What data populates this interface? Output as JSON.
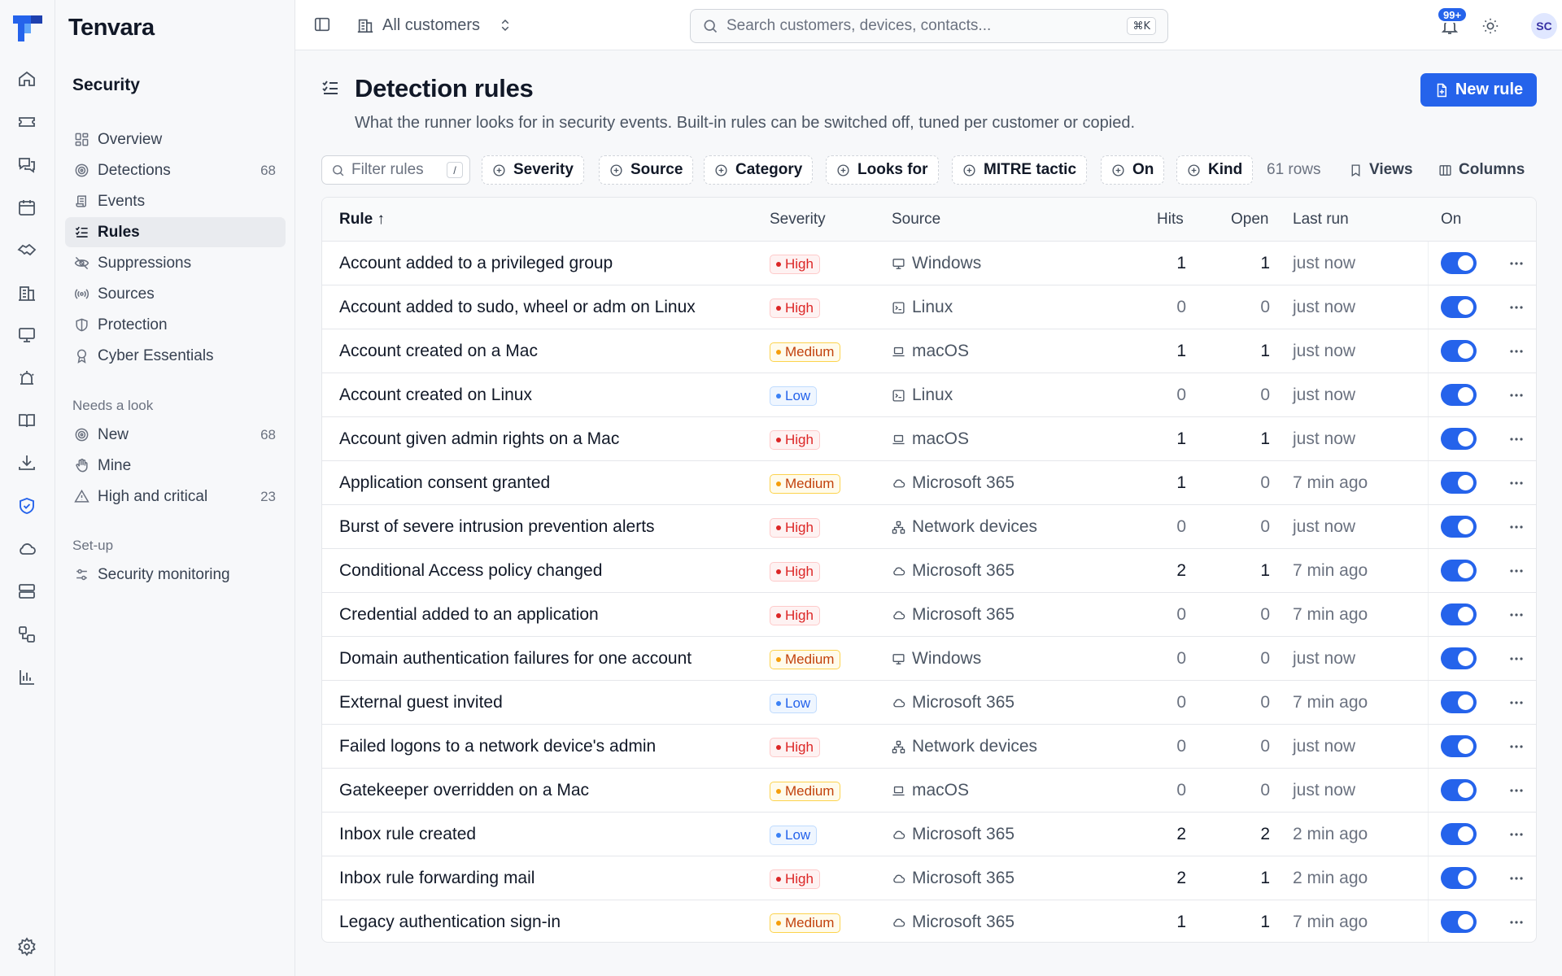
{
  "app": {
    "name": "Tenvara"
  },
  "rail": {
    "icons": [
      "home-icon",
      "ticket-icon",
      "chat-icon",
      "calendar-icon",
      "handshake-icon",
      "building-icon",
      "monitor-icon",
      "alarm-icon",
      "book-icon",
      "download-icon",
      "shield-icon",
      "cloud-icon",
      "server-icon",
      "workflow-icon",
      "bar-chart-icon",
      "settings-icon"
    ],
    "active": "shield-icon"
  },
  "sidebar": {
    "title": "Security",
    "items": [
      {
        "label": "Overview",
        "icon": "dashboard-icon",
        "count": ""
      },
      {
        "label": "Detections",
        "icon": "target-icon",
        "count": "68"
      },
      {
        "label": "Events",
        "icon": "scroll-icon",
        "count": ""
      },
      {
        "label": "Rules",
        "icon": "list-check-icon",
        "count": "",
        "active": true
      },
      {
        "label": "Suppressions",
        "icon": "eye-off-icon",
        "count": ""
      },
      {
        "label": "Sources",
        "icon": "radio-icon",
        "count": ""
      },
      {
        "label": "Protection",
        "icon": "shield-half-icon",
        "count": ""
      },
      {
        "label": "Cyber Essentials",
        "icon": "award-icon",
        "count": ""
      }
    ],
    "group_needs_look": "Needs a look",
    "needs_look_items": [
      {
        "label": "New",
        "icon": "target-icon",
        "count": "68"
      },
      {
        "label": "Mine",
        "icon": "hand-icon",
        "count": ""
      },
      {
        "label": "High and critical",
        "icon": "warning-icon",
        "count": "23"
      }
    ],
    "group_setup": "Set-up",
    "setup_items": [
      {
        "label": "Security monitoring",
        "icon": "sliders-icon",
        "count": ""
      }
    ]
  },
  "topbar": {
    "customer_selector": "All customers",
    "search_placeholder": "Search customers, devices, contacts...",
    "search_shortcut": "⌘K",
    "notifications_badge": "99+",
    "avatar_initials": "SC"
  },
  "page": {
    "title": "Detection rules",
    "description": "What the runner looks for in security events. Built-in rules can be switched off, tuned per customer or copied.",
    "new_button": "New rule"
  },
  "filters": {
    "filter_placeholder": "Filter rules",
    "filter_shortcut": "/",
    "chips": [
      "Severity",
      "Source",
      "Category",
      "Looks for",
      "MITRE tactic",
      "On",
      "Kind"
    ],
    "rows_count": "61 rows",
    "views_label": "Views",
    "columns_label": "Columns"
  },
  "table": {
    "columns": {
      "rule": "Rule ↑",
      "severity": "Severity",
      "source": "Source",
      "hits": "Hits",
      "open": "Open",
      "last_run": "Last run",
      "on": "On"
    },
    "rows": [
      {
        "rule": "Account added to a privileged group",
        "severity": "High",
        "source": "Windows",
        "source_icon": "monitor-icon",
        "hits": "1",
        "open": "1",
        "last_run": "just now",
        "on": true
      },
      {
        "rule": "Account added to sudo, wheel or adm on Linux",
        "severity": "High",
        "source": "Linux",
        "source_icon": "terminal-icon",
        "hits": "0",
        "open": "0",
        "last_run": "just now",
        "on": true
      },
      {
        "rule": "Account created on a Mac",
        "severity": "Medium",
        "source": "macOS",
        "source_icon": "laptop-icon",
        "hits": "1",
        "open": "1",
        "last_run": "just now",
        "on": true
      },
      {
        "rule": "Account created on Linux",
        "severity": "Low",
        "source": "Linux",
        "source_icon": "terminal-icon",
        "hits": "0",
        "open": "0",
        "last_run": "just now",
        "on": true
      },
      {
        "rule": "Account given admin rights on a Mac",
        "severity": "High",
        "source": "macOS",
        "source_icon": "laptop-icon",
        "hits": "1",
        "open": "1",
        "last_run": "just now",
        "on": true
      },
      {
        "rule": "Application consent granted",
        "severity": "Medium",
        "source": "Microsoft 365",
        "source_icon": "cloud-icon",
        "hits": "1",
        "open": "0",
        "last_run": "7 min ago",
        "on": true
      },
      {
        "rule": "Burst of severe intrusion prevention alerts",
        "severity": "High",
        "source": "Network devices",
        "source_icon": "network-icon",
        "hits": "0",
        "open": "0",
        "last_run": "just now",
        "on": true
      },
      {
        "rule": "Conditional Access policy changed",
        "severity": "High",
        "source": "Microsoft 365",
        "source_icon": "cloud-icon",
        "hits": "2",
        "open": "1",
        "last_run": "7 min ago",
        "on": true
      },
      {
        "rule": "Credential added to an application",
        "severity": "High",
        "source": "Microsoft 365",
        "source_icon": "cloud-icon",
        "hits": "0",
        "open": "0",
        "last_run": "7 min ago",
        "on": true
      },
      {
        "rule": "Domain authentication failures for one account",
        "severity": "Medium",
        "source": "Windows",
        "source_icon": "monitor-icon",
        "hits": "0",
        "open": "0",
        "last_run": "just now",
        "on": true
      },
      {
        "rule": "External guest invited",
        "severity": "Low",
        "source": "Microsoft 365",
        "source_icon": "cloud-icon",
        "hits": "0",
        "open": "0",
        "last_run": "7 min ago",
        "on": true
      },
      {
        "rule": "Failed logons to a network device's admin",
        "severity": "High",
        "source": "Network devices",
        "source_icon": "network-icon",
        "hits": "0",
        "open": "0",
        "last_run": "just now",
        "on": true
      },
      {
        "rule": "Gatekeeper overridden on a Mac",
        "severity": "Medium",
        "source": "macOS",
        "source_icon": "laptop-icon",
        "hits": "0",
        "open": "0",
        "last_run": "just now",
        "on": true
      },
      {
        "rule": "Inbox rule created",
        "severity": "Low",
        "source": "Microsoft 365",
        "source_icon": "cloud-icon",
        "hits": "2",
        "open": "2",
        "last_run": "2 min ago",
        "on": true
      },
      {
        "rule": "Inbox rule forwarding mail",
        "severity": "High",
        "source": "Microsoft 365",
        "source_icon": "cloud-icon",
        "hits": "2",
        "open": "1",
        "last_run": "2 min ago",
        "on": true
      },
      {
        "rule": "Legacy authentication sign-in",
        "severity": "Medium",
        "source": "Microsoft 365",
        "source_icon": "cloud-icon",
        "hits": "1",
        "open": "1",
        "last_run": "7 min ago",
        "on": true
      }
    ]
  },
  "colors": {
    "accent": "#2563eb",
    "high": "#dc2626",
    "medium": "#f59e0b",
    "low": "#3b82f6"
  }
}
